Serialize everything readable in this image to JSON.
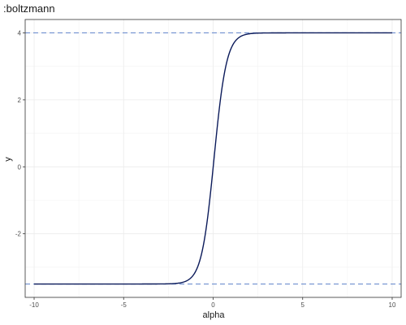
{
  "chart_data": {
    "type": "line",
    "title": ":boltzmann",
    "xlabel": "alpha",
    "ylabel": "y",
    "xlim": [
      -10.5,
      10.5
    ],
    "ylim": [
      -3.9,
      4.4
    ],
    "x_ticks": [
      -10,
      -5,
      0,
      5,
      10
    ],
    "x_tick_labels": [
      "-10",
      "-5",
      "0",
      "5",
      "10"
    ],
    "y_ticks": [
      -2,
      0,
      2,
      4
    ],
    "y_tick_labels": [
      "-2",
      "0",
      "2",
      "4"
    ],
    "grid": true,
    "series": [
      {
        "color": "#0b1a5a",
        "style": "solid",
        "function": "boltzmann",
        "lower": -3.5,
        "upper": 4.0,
        "midpoint": 0.05,
        "slope": 0.35,
        "x_range": [
          -10,
          10
        ]
      }
    ],
    "reference_lines": [
      {
        "orientation": "horizontal",
        "y": 4.0,
        "style": "dashed",
        "color": "#6f8fcf"
      },
      {
        "orientation": "horizontal",
        "y": -3.5,
        "style": "dashed",
        "color": "#6f8fcf"
      }
    ]
  }
}
